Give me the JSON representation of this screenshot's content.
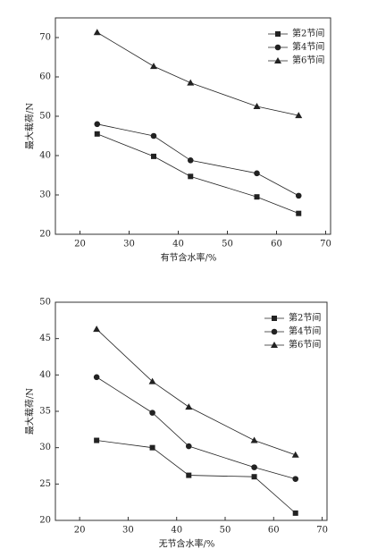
{
  "chart_data": [
    {
      "type": "line",
      "x_label": "有节含水率/%",
      "y_label": "最大载荷/N",
      "xlim": [
        15,
        71
      ],
      "xticks": [
        20,
        30,
        40,
        50,
        60,
        70
      ],
      "ylim": [
        20,
        75
      ],
      "yticks": [
        20,
        30,
        40,
        50,
        60,
        70
      ],
      "x": [
        23.5,
        35,
        42.5,
        56,
        64.5
      ],
      "series": [
        {
          "name": "第2节间",
          "color": "#222222",
          "marker": "square",
          "values": [
            45.5,
            39.8,
            34.7,
            29.5,
            25.3
          ]
        },
        {
          "name": "第4节间",
          "color": "#222222",
          "marker": "circle",
          "values": [
            48,
            45,
            38.8,
            35.5,
            29.8
          ]
        },
        {
          "name": "第6节间",
          "color": "#222222",
          "marker": "triangle",
          "values": [
            71.3,
            62.7,
            58.5,
            52.5,
            50.2
          ]
        }
      ]
    },
    {
      "type": "line",
      "x_label": "无节含水率/%",
      "y_label": "最大载荷/N",
      "xlim": [
        15,
        71
      ],
      "xticks": [
        20,
        30,
        40,
        50,
        60,
        70
      ],
      "ylim": [
        20,
        50
      ],
      "yticks": [
        20,
        25,
        30,
        35,
        40,
        45,
        50
      ],
      "x": [
        23.5,
        35,
        42.5,
        56,
        64.5
      ],
      "series": [
        {
          "name": "第2节间",
          "color": "#222222",
          "marker": "square",
          "values": [
            31,
            30,
            26.2,
            26,
            21
          ]
        },
        {
          "name": "第4节间",
          "color": "#222222",
          "marker": "circle",
          "values": [
            39.7,
            34.8,
            30.2,
            27.3,
            25.7
          ]
        },
        {
          "name": "第6节间",
          "color": "#222222",
          "marker": "triangle",
          "values": [
            46.3,
            39.1,
            35.6,
            31,
            29
          ]
        }
      ]
    }
  ]
}
